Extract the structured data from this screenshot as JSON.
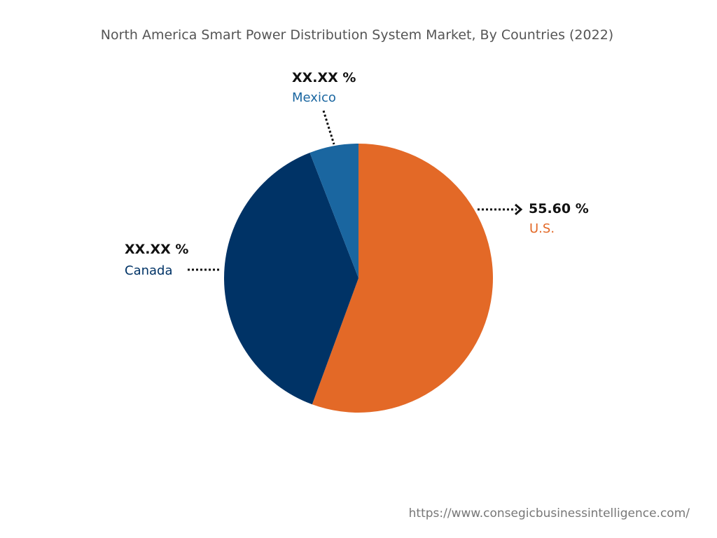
{
  "chart_data": {
    "type": "pie",
    "title": "North America Smart Power Distribution System Market, By Countries (2022)",
    "slices": [
      {
        "name": "U.S.",
        "value": 55.6,
        "label": "55.60  %",
        "color": "#E36927"
      },
      {
        "name": "Canada",
        "value": 38.5,
        "label": "XX.XX %",
        "color": "#003366"
      },
      {
        "name": "Mexico",
        "value": 5.9,
        "label": "XX.XX %",
        "color": "#1A66A0"
      }
    ],
    "start": "12 o'clock",
    "direction": "clockwise"
  },
  "source": "https://www.consegicbusinessintelligence.com/"
}
